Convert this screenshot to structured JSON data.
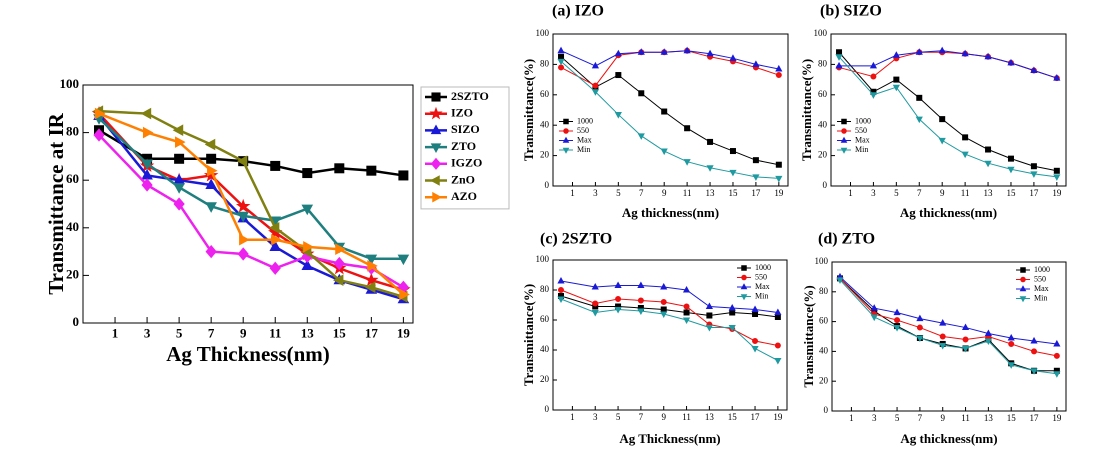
{
  "chart_data": [
    {
      "type": "line",
      "x_label": "Ag Thickness(nm)",
      "y_label": "Transmittance at IR",
      "x": [
        0,
        3,
        5,
        7,
        9,
        11,
        13,
        15,
        17,
        19
      ],
      "xlim": [
        -1,
        19.6
      ],
      "xticks": [
        1,
        3,
        5,
        7,
        9,
        11,
        13,
        15,
        17,
        19
      ],
      "ylim": [
        0,
        100
      ],
      "yticks": [
        0,
        20,
        40,
        60,
        80,
        100
      ],
      "legend": "outside right",
      "series": [
        {
          "name": "2SZTO",
          "color": "#000000",
          "marker": "square",
          "values": [
            81,
            69,
            69,
            69,
            68,
            66,
            63,
            65,
            64,
            62
          ]
        },
        {
          "name": "IZO",
          "color": "#ee1111",
          "marker": "star",
          "values": [
            88,
            66,
            60,
            62,
            49,
            38,
            29,
            23,
            18,
            14
          ]
        },
        {
          "name": "SIZO",
          "color": "#1a1ad6",
          "marker": "triangle-up",
          "values": [
            87,
            62,
            60,
            58,
            44,
            32,
            24,
            18,
            14,
            10
          ]
        },
        {
          "name": "ZTO",
          "color": "#1f7f7f",
          "marker": "triangle-down",
          "values": [
            86,
            67,
            57,
            49,
            45,
            43,
            48,
            32,
            27,
            27
          ]
        },
        {
          "name": "IGZO",
          "color": "#ee22ee",
          "marker": "diamond",
          "values": [
            79,
            58,
            50,
            30,
            29,
            23,
            28,
            25,
            23,
            15
          ]
        },
        {
          "name": "ZnO",
          "color": "#808010",
          "marker": "triangle-left",
          "values": [
            89,
            88,
            81,
            75,
            68,
            40,
            30,
            18,
            15,
            11
          ]
        },
        {
          "name": "AZO",
          "color": "#ff8000",
          "marker": "triangle-right",
          "values": [
            88,
            80,
            76,
            64,
            35,
            35,
            32,
            31,
            24,
            12
          ]
        }
      ]
    },
    {
      "type": "line",
      "title": "(a) IZO",
      "x_label": "Ag thickness(nm)",
      "y_label": "Transmittance(%)",
      "x": [
        0,
        3,
        5,
        7,
        9,
        11,
        13,
        15,
        17,
        19
      ],
      "xlim": [
        -0.7,
        19.8
      ],
      "xticks": [
        1,
        3,
        5,
        7,
        9,
        11,
        13,
        15,
        17,
        19
      ],
      "ylim": [
        0,
        100
      ],
      "yticks": [
        0,
        20,
        40,
        60,
        80,
        100
      ],
      "legend": "lower left",
      "series": [
        {
          "name": "1000",
          "color": "#000000",
          "marker": "square",
          "values": [
            85,
            65,
            73,
            61,
            49,
            38,
            29,
            23,
            17,
            14
          ]
        },
        {
          "name": "550",
          "color": "#ee1111",
          "marker": "circle",
          "values": [
            78,
            66,
            86,
            88,
            88,
            89,
            85,
            82,
            78,
            73
          ]
        },
        {
          "name": "Max",
          "color": "#1a1ad6",
          "marker": "triangle-up",
          "values": [
            89,
            79,
            87,
            88,
            88,
            89,
            87,
            84,
            80,
            77
          ]
        },
        {
          "name": "Min",
          "color": "#1e9aa0",
          "marker": "triangle-down",
          "values": [
            82,
            62,
            47,
            33,
            23,
            16,
            12,
            9,
            6,
            5
          ]
        }
      ]
    },
    {
      "type": "line",
      "title": "(b) SIZO",
      "x_label": "Ag thickness(nm)",
      "y_label": "Transmittance(%)",
      "x": [
        0,
        3,
        5,
        7,
        9,
        11,
        13,
        15,
        17,
        19
      ],
      "xlim": [
        -0.7,
        19.8
      ],
      "xticks": [
        1,
        3,
        5,
        7,
        9,
        11,
        13,
        15,
        17,
        19
      ],
      "ylim": [
        0,
        100
      ],
      "yticks": [
        0,
        20,
        40,
        60,
        80,
        100
      ],
      "legend": "lower left",
      "series": [
        {
          "name": "1000",
          "color": "#000000",
          "marker": "square",
          "values": [
            88,
            62,
            70,
            58,
            44,
            32,
            24,
            18,
            13,
            10
          ]
        },
        {
          "name": "550",
          "color": "#ee1111",
          "marker": "circle",
          "values": [
            78,
            72,
            84,
            88,
            88,
            87,
            85,
            81,
            76,
            71
          ]
        },
        {
          "name": "Max",
          "color": "#1a1ad6",
          "marker": "triangle-up",
          "values": [
            79,
            79,
            86,
            88,
            89,
            87,
            85,
            81,
            76,
            71
          ]
        },
        {
          "name": "Min",
          "color": "#1e9aa0",
          "marker": "triangle-down",
          "values": [
            85,
            60,
            65,
            44,
            30,
            21,
            15,
            11,
            8,
            6
          ]
        }
      ]
    },
    {
      "type": "line",
      "title": "(c) 2SZTO",
      "x_label": "Ag Thickness(nm)",
      "y_label": "Transmittance(%)",
      "x": [
        0,
        3,
        5,
        7,
        9,
        11,
        13,
        15,
        17,
        19
      ],
      "xlim": [
        -0.7,
        19.8
      ],
      "xticks": [
        1,
        3,
        5,
        7,
        9,
        11,
        13,
        15,
        17,
        19
      ],
      "ylim": [
        0,
        100
      ],
      "yticks": [
        0,
        20,
        40,
        60,
        80,
        100
      ],
      "legend": "upper right",
      "series": [
        {
          "name": "1000",
          "color": "#000000",
          "marker": "square",
          "values": [
            76,
            69,
            69,
            68,
            67,
            65,
            63,
            65,
            64,
            62
          ]
        },
        {
          "name": "550",
          "color": "#ee1111",
          "marker": "circle",
          "values": [
            80,
            71,
            74,
            73,
            72,
            69,
            57,
            54,
            46,
            43
          ]
        },
        {
          "name": "Max",
          "color": "#1a1ad6",
          "marker": "triangle-up",
          "values": [
            86,
            82,
            83,
            83,
            82,
            80,
            69,
            68,
            67,
            65
          ]
        },
        {
          "name": "Min",
          "color": "#1e9aa0",
          "marker": "triangle-down",
          "values": [
            74,
            65,
            67,
            66,
            64,
            60,
            55,
            55,
            41,
            33
          ]
        }
      ]
    },
    {
      "type": "line",
      "title": "(d) ZTO",
      "x_label": "Ag thickness(nm)",
      "y_label": "Transmittance(%)",
      "x": [
        0,
        3,
        5,
        7,
        9,
        11,
        13,
        15,
        17,
        19
      ],
      "xlim": [
        -0.7,
        19.8
      ],
      "xticks": [
        1,
        3,
        5,
        7,
        9,
        11,
        13,
        15,
        17,
        19
      ],
      "ylim": [
        0,
        100
      ],
      "yticks": [
        0,
        20,
        40,
        60,
        80,
        100
      ],
      "legend": "upper right",
      "series": [
        {
          "name": "1000",
          "color": "#000000",
          "marker": "square",
          "values": [
            89,
            67,
            57,
            49,
            45,
            42,
            48,
            32,
            27,
            27
          ]
        },
        {
          "name": "550",
          "color": "#ee1111",
          "marker": "circle",
          "values": [
            89,
            65,
            61,
            56,
            50,
            48,
            50,
            45,
            40,
            37
          ]
        },
        {
          "name": "Max",
          "color": "#1a1ad6",
          "marker": "triangle-up",
          "values": [
            90,
            69,
            66,
            62,
            59,
            56,
            52,
            49,
            47,
            45
          ]
        },
        {
          "name": "Min",
          "color": "#1e9aa0",
          "marker": "triangle-down",
          "values": [
            88,
            63,
            56,
            49,
            44,
            42,
            47,
            31,
            27,
            25
          ]
        }
      ]
    }
  ]
}
